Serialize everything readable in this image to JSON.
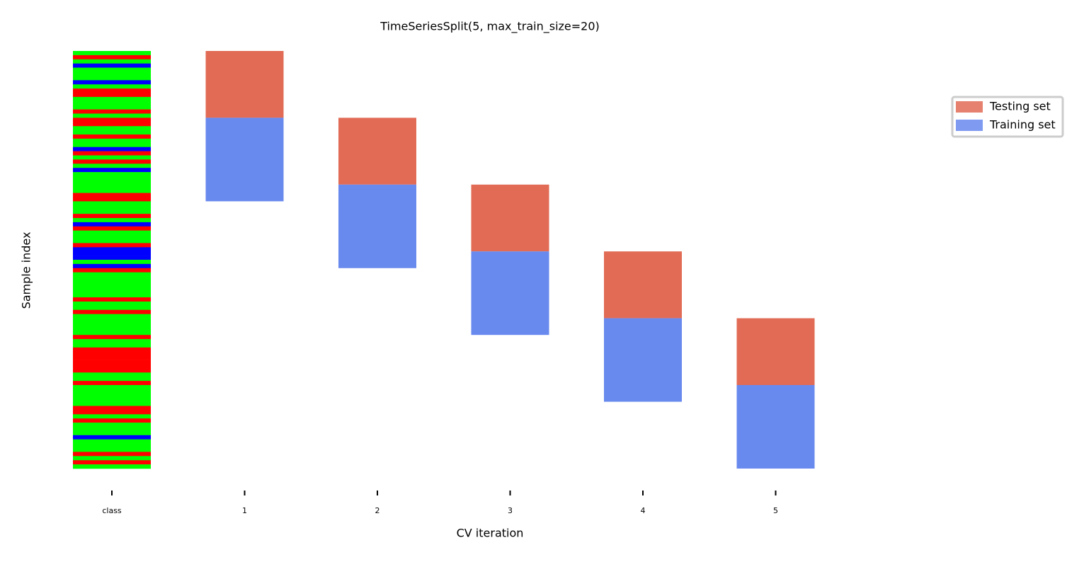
{
  "chart_data": {
    "type": "cv_split",
    "title": "TimeSeriesSplit(5, max_train_size=20)",
    "xlabel": "CV iteration",
    "ylabel": "Sample index",
    "categories": [
      "class",
      "1",
      "2",
      "3",
      "4",
      "5"
    ],
    "ylim": [
      0,
      100
    ],
    "classes": [
      1,
      0,
      1,
      2,
      1,
      1,
      1,
      2,
      1,
      0,
      0,
      1,
      1,
      1,
      0,
      1,
      0,
      0,
      1,
      1,
      0,
      1,
      1,
      2,
      0,
      1,
      0,
      1,
      2,
      1,
      1,
      1,
      1,
      1,
      0,
      0,
      1,
      1,
      1,
      0,
      1,
      2,
      0,
      1,
      1,
      1,
      0,
      2,
      2,
      2,
      1,
      2,
      0,
      1,
      1,
      1,
      1,
      1,
      1,
      0,
      1,
      1,
      0,
      1,
      1,
      1,
      1,
      1,
      0,
      1,
      1,
      0,
      0,
      0,
      0,
      0,
      0,
      1,
      1,
      0,
      1,
      1,
      1,
      1,
      1,
      0,
      0,
      1,
      0,
      1,
      1,
      1,
      2,
      1,
      1,
      1,
      0,
      1,
      0,
      1
    ],
    "class_colors": [
      "#ff0000",
      "#00ff00",
      "#0000ff"
    ],
    "splits": [
      {
        "test": [
          0,
          16
        ],
        "train": [
          16,
          36
        ]
      },
      {
        "test": [
          16,
          32
        ],
        "train": [
          32,
          52
        ]
      },
      {
        "test": [
          32,
          48
        ],
        "train": [
          48,
          68
        ]
      },
      {
        "test": [
          48,
          64
        ],
        "train": [
          64,
          84
        ]
      },
      {
        "test": [
          64,
          80
        ],
        "train": [
          80,
          100
        ]
      }
    ],
    "series": [
      {
        "name": "Testing set",
        "color": "#e16b55"
      },
      {
        "name": "Training set",
        "color": "#6889ee"
      }
    ],
    "legend": "upper right"
  }
}
